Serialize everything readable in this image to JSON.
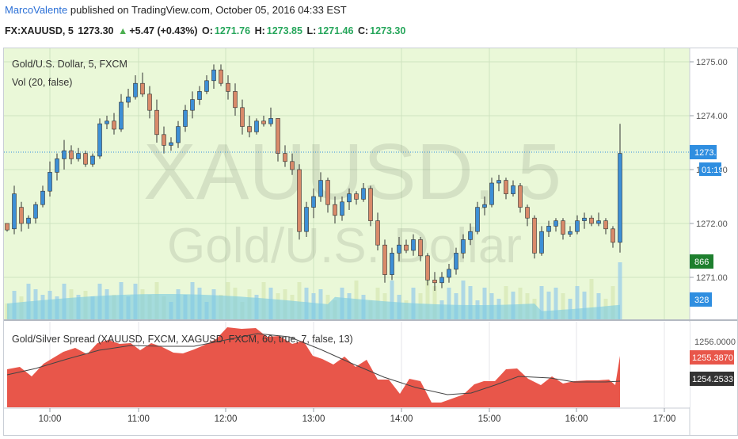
{
  "header": {
    "author": "MarcoValente",
    "published_text": "published on TradingView.com, October 05, 2016 04:33 EST",
    "symbol_line": {
      "symbol": "FX:XAUUSD, 5",
      "price": "1273.30",
      "arrow": "▲",
      "change": "+5.47 (+0.43%)",
      "o_label": "O:",
      "o_value": "1271.76",
      "h_label": "H:",
      "h_value": "1273.85",
      "l_label": "L:",
      "l_value": "1271.46",
      "c_label": "C:",
      "c_value": "1273.30"
    }
  },
  "main_pane": {
    "title": "Gold/U.S. Dollar, 5, FXCM",
    "indicator": "Vol (20, false)",
    "watermark_symbol": "XAUUSD, 5",
    "watermark_name": "Gold/U.S. Dollar",
    "price_ticks": [
      "1275.00",
      "1274.00",
      "1273.00",
      "1272.00",
      "1271.00"
    ],
    "current_price_label": "1273.30",
    "countdown_label": "01:19",
    "volume_label": "866",
    "volume_ma_label": "328"
  },
  "lower_pane": {
    "title": "Gold/Silver Spread (XAUUSD, FXCM, XAGUSD, FXCM, 60, true, 7, false, 13)",
    "axis_tick": "1256.0000",
    "spread_label": "1255.3870",
    "ma_label": "1254.2533"
  },
  "time_axis": [
    "10:00",
    "11:00",
    "12:00",
    "13:00",
    "14:00",
    "15:00",
    "16:00",
    "17:00"
  ],
  "colors": {
    "up": "#3d8fd6",
    "down": "#d98a6a",
    "plot_bg": "#eaf8d8",
    "spread_fill": "#e8564a",
    "volume_fill": "#7fcde0",
    "price_line": "#2f8ee0",
    "volume_badge": "#1e7f2e",
    "spread_badge": "#e8564a",
    "ma_badge": "#333333"
  },
  "chart_data": {
    "type": "candlestick",
    "x_range": [
      "09:48",
      "16:28"
    ],
    "interval": "5 min",
    "ylim": [
      1270.6,
      1275.2
    ],
    "candles": [
      [
        1272.0,
        1272.0,
        1271.85,
        1271.88
      ],
      [
        1271.9,
        1272.7,
        1271.8,
        1272.55
      ],
      [
        1272.3,
        1272.4,
        1271.85,
        1272.0
      ],
      [
        1272.0,
        1272.15,
        1271.9,
        1272.1
      ],
      [
        1272.1,
        1272.4,
        1272.0,
        1272.35
      ],
      [
        1272.35,
        1272.7,
        1272.3,
        1272.6
      ],
      [
        1272.6,
        1273.15,
        1272.5,
        1272.95
      ],
      [
        1272.95,
        1273.3,
        1272.8,
        1273.2
      ],
      [
        1273.2,
        1273.55,
        1273.0,
        1273.35
      ],
      [
        1273.35,
        1273.45,
        1273.1,
        1273.2
      ],
      [
        1273.2,
        1273.4,
        1273.15,
        1273.3
      ],
      [
        1273.3,
        1273.35,
        1273.05,
        1273.1
      ],
      [
        1273.1,
        1273.3,
        1273.05,
        1273.25
      ],
      [
        1273.25,
        1273.95,
        1273.2,
        1273.85
      ],
      [
        1273.85,
        1274.0,
        1273.75,
        1273.9
      ],
      [
        1273.9,
        1274.05,
        1273.65,
        1273.75
      ],
      [
        1273.75,
        1274.4,
        1273.7,
        1274.25
      ],
      [
        1274.25,
        1274.5,
        1274.15,
        1274.35
      ],
      [
        1274.35,
        1274.75,
        1274.3,
        1274.6
      ],
      [
        1274.6,
        1274.8,
        1274.35,
        1274.4
      ],
      [
        1274.4,
        1274.55,
        1273.95,
        1274.1
      ],
      [
        1274.1,
        1274.3,
        1273.5,
        1273.65
      ],
      [
        1273.65,
        1273.8,
        1273.3,
        1273.45
      ],
      [
        1273.45,
        1273.6,
        1273.35,
        1273.5
      ],
      [
        1273.5,
        1273.9,
        1273.4,
        1273.8
      ],
      [
        1273.8,
        1274.2,
        1273.7,
        1274.1
      ],
      [
        1274.1,
        1274.45,
        1273.95,
        1274.3
      ],
      [
        1274.3,
        1274.55,
        1274.2,
        1274.45
      ],
      [
        1274.45,
        1274.75,
        1274.4,
        1274.65
      ],
      [
        1274.65,
        1274.95,
        1274.5,
        1274.85
      ],
      [
        1274.85,
        1274.95,
        1274.55,
        1274.6
      ],
      [
        1274.6,
        1274.75,
        1274.3,
        1274.45
      ],
      [
        1274.45,
        1274.6,
        1274.0,
        1274.15
      ],
      [
        1274.15,
        1274.3,
        1273.65,
        1273.8
      ],
      [
        1273.8,
        1274.0,
        1273.6,
        1273.7
      ],
      [
        1273.7,
        1273.95,
        1273.65,
        1273.9
      ],
      [
        1273.9,
        1274.0,
        1273.8,
        1273.85
      ],
      [
        1273.85,
        1274.15,
        1273.8,
        1273.95
      ],
      [
        1273.95,
        1273.95,
        1273.15,
        1273.3
      ],
      [
        1273.3,
        1273.45,
        1273.05,
        1273.15
      ],
      [
        1273.15,
        1273.3,
        1272.9,
        1273.0
      ],
      [
        1273.0,
        1273.1,
        1271.7,
        1271.85
      ],
      [
        1271.85,
        1272.4,
        1271.75,
        1272.3
      ],
      [
        1272.3,
        1272.65,
        1272.1,
        1272.5
      ],
      [
        1272.5,
        1272.95,
        1272.4,
        1272.8
      ],
      [
        1272.8,
        1272.85,
        1272.2,
        1272.35
      ],
      [
        1272.35,
        1272.5,
        1272.0,
        1272.15
      ],
      [
        1272.15,
        1272.5,
        1272.05,
        1272.4
      ],
      [
        1272.4,
        1272.65,
        1272.25,
        1272.55
      ],
      [
        1272.55,
        1272.6,
        1272.35,
        1272.45
      ],
      [
        1272.45,
        1272.75,
        1272.4,
        1272.65
      ],
      [
        1272.65,
        1272.7,
        1271.95,
        1272.05
      ],
      [
        1272.05,
        1272.2,
        1271.5,
        1271.6
      ],
      [
        1271.6,
        1271.7,
        1270.9,
        1271.05
      ],
      [
        1271.05,
        1271.55,
        1270.95,
        1271.45
      ],
      [
        1271.45,
        1271.75,
        1271.3,
        1271.6
      ],
      [
        1271.6,
        1271.7,
        1271.45,
        1271.5
      ],
      [
        1271.5,
        1271.8,
        1271.4,
        1271.7
      ],
      [
        1271.7,
        1271.75,
        1271.3,
        1271.4
      ],
      [
        1271.4,
        1271.45,
        1270.85,
        1270.95
      ],
      [
        1270.95,
        1271.1,
        1270.75,
        1270.9
      ],
      [
        1270.9,
        1271.1,
        1270.8,
        1271.0
      ],
      [
        1271.0,
        1271.25,
        1270.9,
        1271.15
      ],
      [
        1271.15,
        1271.55,
        1271.05,
        1271.45
      ],
      [
        1271.45,
        1271.8,
        1271.35,
        1271.7
      ],
      [
        1271.7,
        1272.0,
        1271.6,
        1271.85
      ],
      [
        1271.85,
        1272.4,
        1271.8,
        1272.3
      ],
      [
        1272.3,
        1272.5,
        1272.15,
        1272.35
      ],
      [
        1272.35,
        1272.85,
        1272.3,
        1272.75
      ],
      [
        1272.75,
        1272.9,
        1272.6,
        1272.8
      ],
      [
        1272.8,
        1272.85,
        1272.45,
        1272.55
      ],
      [
        1272.55,
        1272.8,
        1272.5,
        1272.7
      ],
      [
        1272.7,
        1272.75,
        1272.2,
        1272.3
      ],
      [
        1272.3,
        1272.35,
        1271.95,
        1272.1
      ],
      [
        1272.1,
        1272.15,
        1271.35,
        1271.45
      ],
      [
        1271.45,
        1271.95,
        1271.4,
        1271.85
      ],
      [
        1271.85,
        1272.05,
        1271.75,
        1271.95
      ],
      [
        1271.95,
        1272.1,
        1271.85,
        1272.05
      ],
      [
        1272.05,
        1272.1,
        1271.7,
        1271.8
      ],
      [
        1271.8,
        1271.95,
        1271.75,
        1271.85
      ],
      [
        1271.85,
        1272.15,
        1271.8,
        1272.05
      ],
      [
        1272.05,
        1272.2,
        1271.9,
        1272.1
      ],
      [
        1272.1,
        1272.15,
        1271.95,
        1272.0
      ],
      [
        1272.0,
        1272.2,
        1271.95,
        1272.05
      ],
      [
        1272.05,
        1272.1,
        1271.8,
        1271.9
      ],
      [
        1271.9,
        1271.95,
        1271.55,
        1271.65
      ],
      [
        1271.65,
        1273.85,
        1271.46,
        1273.3
      ]
    ]
  }
}
